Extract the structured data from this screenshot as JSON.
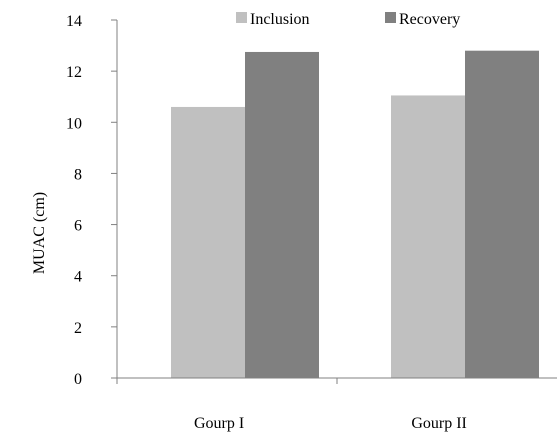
{
  "chart_data": {
    "type": "bar",
    "categories": [
      "Gourp I",
      "Gourp II"
    ],
    "series": [
      {
        "name": "Inclusion",
        "values": [
          10.6,
          11.05
        ],
        "color": "#c0c0c0"
      },
      {
        "name": "Recovery",
        "values": [
          12.75,
          12.8
        ],
        "color": "#808080"
      }
    ],
    "title": "",
    "xlabel": "",
    "ylabel": "MUAC (cm)",
    "ylim": [
      0,
      14
    ],
    "yticks": [
      "0",
      "2",
      "4",
      "6",
      "8",
      "10",
      "12",
      "14"
    ],
    "grid": false,
    "legend": "top"
  }
}
